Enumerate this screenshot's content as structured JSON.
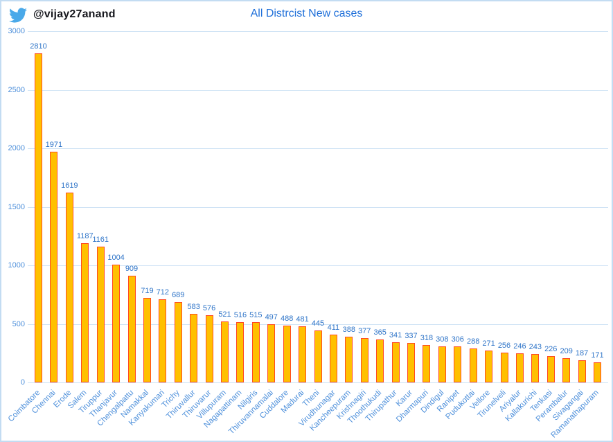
{
  "header": {
    "handle": "@vijay27anand",
    "title": "All Distrcist New cases",
    "icon": "twitter-bird-icon",
    "handle_color": "#16171d",
    "title_color": "#1e6fd9",
    "icon_color": "#4aa9e9"
  },
  "chart_data": {
    "type": "bar",
    "title": "All Distrcist New cases",
    "xlabel": "",
    "ylabel": "",
    "ylim": [
      0,
      3000
    ],
    "yticks": [
      0,
      500,
      1000,
      1500,
      2000,
      2500,
      3000
    ],
    "grid": true,
    "legend": false,
    "categories": [
      "Coimbatore",
      "Chennai",
      "Erode",
      "Salem",
      "Tiruppur",
      "Thanjavur",
      "Chengalpattu",
      "Namakkal",
      "Kanyakumari",
      "Trichy",
      "Thiruvallur",
      "Thiruvarur",
      "Villupuram",
      "Nagapattinam",
      "Nilgiris",
      "Thiruvannamalai",
      "Cuddalore",
      "Madurai",
      "Theni",
      "Virudhunagar",
      "Kancheepuram",
      "Krishnagiri",
      "Thoothukudi",
      "Thirupathur",
      "Karur",
      "Dharmapuri",
      "Dindigul",
      "Ranipet",
      "Pudukottai",
      "Vellore",
      "Tirunelveli",
      "Ariyalur",
      "Kallakurichi",
      "Tenkasi",
      "Perambalur",
      "Sivagangai",
      "Ramanathapuram"
    ],
    "values": [
      2810,
      1971,
      1619,
      1187,
      1161,
      1004,
      909,
      719,
      712,
      689,
      583,
      576,
      521,
      516,
      515,
      497,
      488,
      481,
      445,
      411,
      388,
      377,
      365,
      341,
      337,
      318,
      308,
      306,
      288,
      271,
      256,
      246,
      243,
      226,
      209,
      187,
      171
    ],
    "bar_fill": "#ffc000",
    "bar_border": "#ff4a22",
    "value_label_color": "#2e74c8",
    "axis_label_color": "#4e90db",
    "gridline_color": "#cfe3f5"
  }
}
